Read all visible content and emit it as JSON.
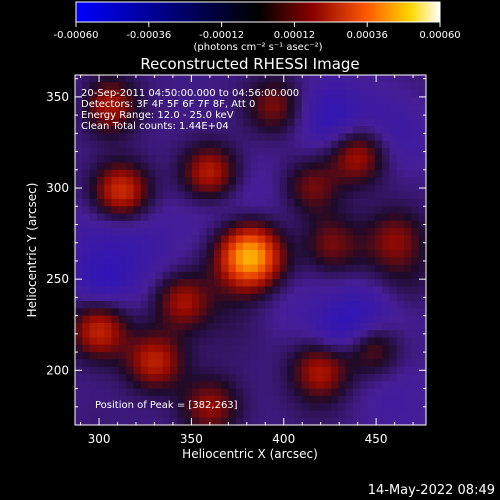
{
  "chart_data": {
    "type": "heatmap",
    "title": "Reconstructed RHESSI Image",
    "xlabel": "Heliocentric X (arcsec)",
    "ylabel": "Heliocentric Y (arcsec)",
    "xlim": [
      287,
      477
    ],
    "ylim": [
      170,
      362
    ],
    "x_ticks": [
      300,
      350,
      400,
      450
    ],
    "y_ticks": [
      200,
      250,
      300,
      350
    ],
    "colorbar": {
      "range": [
        -0.0006,
        0.0006
      ],
      "ticks": [
        "-0.00060",
        "-0.00036",
        "-0.00012",
        "0.00012",
        "0.00036",
        "0.00060"
      ],
      "units": "(photons cm⁻² s⁻¹ asec⁻²)"
    },
    "annotations": [
      "20-Sep-2011 04:50:00.000 to 04:56:00.000",
      "Detectors: 3F 4F 5F 6F 7F 8F, Att 0",
      "Energy Range: 12.0 - 25.0 keV",
      "Clean     Total counts: 1.44E+04"
    ],
    "peak_label": "Position of Peak = [382,263]",
    "peak": [
      382,
      263
    ],
    "sources": [
      {
        "x": 382,
        "y": 263,
        "value": 0.0006
      },
      {
        "x": 312,
        "y": 298,
        "value": 0.00034
      },
      {
        "x": 360,
        "y": 308,
        "value": 0.0003
      },
      {
        "x": 440,
        "y": 318,
        "value": 0.00028
      },
      {
        "x": 305,
        "y": 345,
        "value": 0.00026
      },
      {
        "x": 395,
        "y": 345,
        "value": 0.0002
      },
      {
        "x": 300,
        "y": 222,
        "value": 0.0003
      },
      {
        "x": 330,
        "y": 205,
        "value": 0.00028
      },
      {
        "x": 345,
        "y": 238,
        "value": 0.00024
      },
      {
        "x": 420,
        "y": 200,
        "value": 0.00026
      },
      {
        "x": 448,
        "y": 212,
        "value": 0.00024
      },
      {
        "x": 425,
        "y": 270,
        "value": 0.00018
      },
      {
        "x": 460,
        "y": 272,
        "value": 0.00016
      },
      {
        "x": 360,
        "y": 180,
        "value": 0.00022
      },
      {
        "x": 415,
        "y": 300,
        "value": 0.0002
      }
    ]
  },
  "timestamp": "14-May-2022 08:49"
}
